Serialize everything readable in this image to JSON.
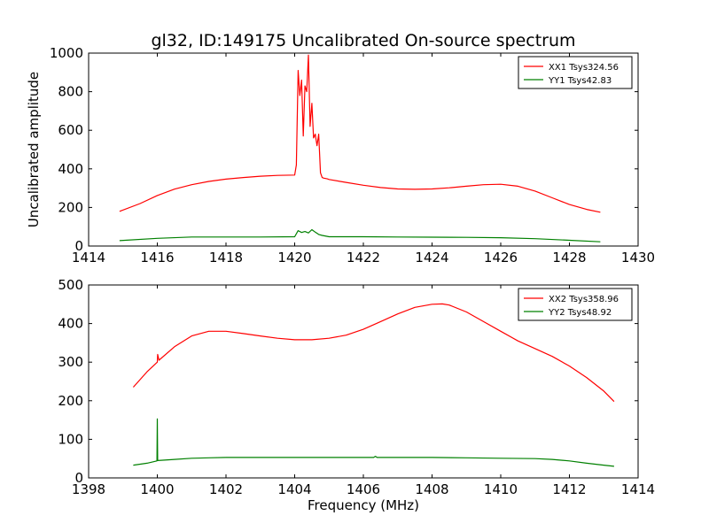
{
  "chart_data": [
    {
      "type": "line",
      "title": "gl32, ID:149175 Uncalibrated On-source spectrum",
      "xlabel": "",
      "ylabel": "Uncalibrated amplitude",
      "xlim": [
        1414,
        1430
      ],
      "ylim": [
        0,
        1000
      ],
      "xticks": [
        "1414",
        "1416",
        "1418",
        "1420",
        "1422",
        "1424",
        "1426",
        "1428",
        "1430"
      ],
      "yticks": [
        "0",
        "200",
        "400",
        "600",
        "800",
        "1000"
      ],
      "legend_position": "top-right",
      "grid": false,
      "series": [
        {
          "name": "XX1 Tsys324.56",
          "color": "#ff0000",
          "x": [
            1414.9,
            1415.5,
            1416.0,
            1416.5,
            1417.0,
            1417.5,
            1418.0,
            1418.5,
            1419.0,
            1419.5,
            1420.0,
            1420.05,
            1420.1,
            1420.15,
            1420.2,
            1420.25,
            1420.3,
            1420.35,
            1420.4,
            1420.45,
            1420.5,
            1420.55,
            1420.6,
            1420.65,
            1420.7,
            1420.75,
            1420.8,
            1420.85,
            1420.9,
            1420.95,
            1421.0,
            1421.5,
            1422.0,
            1422.5,
            1423.0,
            1423.5,
            1424.0,
            1424.5,
            1425.0,
            1425.5,
            1426.0,
            1426.5,
            1427.0,
            1427.5,
            1428.0,
            1428.5,
            1428.9
          ],
          "y": [
            180,
            220,
            262,
            295,
            318,
            335,
            347,
            355,
            362,
            366,
            368,
            420,
            910,
            780,
            860,
            570,
            830,
            800,
            990,
            620,
            740,
            560,
            580,
            520,
            580,
            380,
            355,
            352,
            350,
            348,
            345,
            330,
            315,
            303,
            296,
            294,
            296,
            302,
            310,
            318,
            320,
            310,
            285,
            250,
            215,
            190,
            175
          ]
        },
        {
          "name": "YY1 Tsys42.83",
          "color": "#008000",
          "x": [
            1414.9,
            1416.0,
            1417.0,
            1418.0,
            1419.0,
            1420.0,
            1420.1,
            1420.2,
            1420.3,
            1420.4,
            1420.5,
            1420.6,
            1420.7,
            1420.8,
            1421.0,
            1422.0,
            1423.0,
            1424.0,
            1425.0,
            1426.0,
            1427.0,
            1428.0,
            1428.9
          ],
          "y": [
            28,
            40,
            47,
            47,
            47,
            48,
            80,
            70,
            75,
            68,
            85,
            72,
            60,
            55,
            48,
            48,
            47,
            46,
            45,
            43,
            38,
            30,
            22
          ]
        }
      ]
    },
    {
      "type": "line",
      "title": "",
      "xlabel": "Frequency (MHz)",
      "ylabel": "",
      "xlim": [
        1398,
        1414
      ],
      "ylim": [
        0,
        500
      ],
      "xticks": [
        "1398",
        "1400",
        "1402",
        "1404",
        "1406",
        "1408",
        "1410",
        "1412",
        "1414"
      ],
      "yticks": [
        "0",
        "100",
        "200",
        "300",
        "400",
        "500"
      ],
      "legend_position": "top-right",
      "grid": false,
      "series": [
        {
          "name": "XX2 Tsys358.96",
          "color": "#ff0000",
          "x": [
            1399.3,
            1399.7,
            1400.0,
            1400.01,
            1400.05,
            1400.5,
            1401.0,
            1401.5,
            1402.0,
            1402.5,
            1403.0,
            1403.5,
            1404.0,
            1404.5,
            1405.0,
            1405.5,
            1406.0,
            1406.5,
            1407.0,
            1407.5,
            1408.0,
            1408.3,
            1408.5,
            1409.0,
            1409.5,
            1410.0,
            1410.5,
            1411.0,
            1411.5,
            1412.0,
            1412.5,
            1413.0,
            1413.3
          ],
          "y": [
            235,
            275,
            300,
            320,
            305,
            340,
            368,
            380,
            380,
            374,
            368,
            362,
            358,
            358,
            362,
            370,
            385,
            405,
            425,
            442,
            450,
            451,
            448,
            430,
            405,
            380,
            355,
            335,
            315,
            290,
            260,
            225,
            198
          ]
        },
        {
          "name": "YY2 Tsys48.92",
          "color": "#008000",
          "x": [
            1399.3,
            1399.7,
            1399.99,
            1400.0,
            1400.01,
            1400.5,
            1401.0,
            1401.5,
            1402.0,
            1403.0,
            1404.0,
            1405.0,
            1406.0,
            1406.3,
            1406.35,
            1406.4,
            1407.0,
            1408.0,
            1409.0,
            1410.0,
            1411.0,
            1411.5,
            1412.0,
            1412.5,
            1413.0,
            1413.3
          ],
          "y": [
            33,
            38,
            44,
            153,
            45,
            48,
            51,
            52,
            53,
            53,
            53,
            53,
            53,
            53,
            56,
            53,
            53,
            53,
            52,
            51,
            50,
            48,
            44,
            38,
            33,
            30
          ]
        }
      ]
    }
  ]
}
